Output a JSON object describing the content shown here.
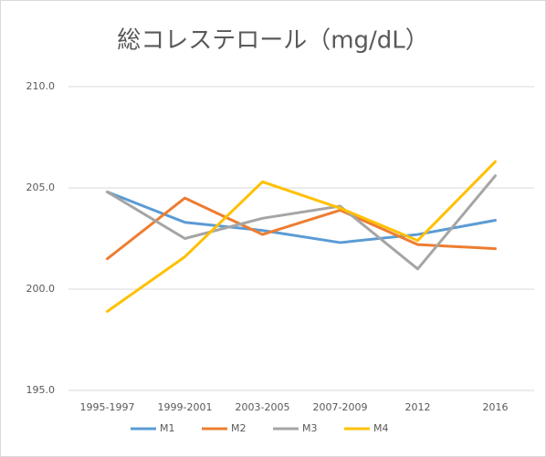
{
  "chart_data": {
    "type": "line",
    "title": "総コレステロール（mg/dL）",
    "categories": [
      "1995-1997",
      "1999-2001",
      "2003-2005",
      "2007-2009",
      "2012",
      "2016"
    ],
    "series": [
      {
        "name": "M1",
        "color": "#5B9BD5",
        "values": [
          204.8,
          203.3,
          202.9,
          202.3,
          202.7,
          203.4
        ]
      },
      {
        "name": "M2",
        "color": "#ED7D31",
        "values": [
          201.5,
          204.5,
          202.7,
          203.9,
          202.2,
          202.0
        ]
      },
      {
        "name": "M3",
        "color": "#A5A5A5",
        "values": [
          204.8,
          202.5,
          203.5,
          204.1,
          201.0,
          205.6
        ]
      },
      {
        "name": "M4",
        "color": "#FFC000",
        "values": [
          198.9,
          201.6,
          205.3,
          204.0,
          202.4,
          206.3
        ]
      }
    ],
    "ylim": [
      195,
      210
    ],
    "yticks": [
      {
        "value": 195,
        "label": "195.0"
      },
      {
        "value": 200,
        "label": "200.0"
      },
      {
        "value": 205,
        "label": "205.0"
      },
      {
        "value": 210,
        "label": "210.0"
      }
    ],
    "grid": true,
    "legend": "bottom"
  }
}
